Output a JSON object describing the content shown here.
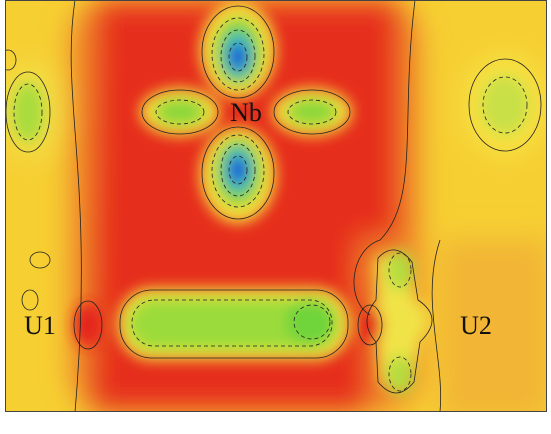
{
  "labels": {
    "nb": "Nb",
    "u1": "U1",
    "u2": "U2"
  }
}
